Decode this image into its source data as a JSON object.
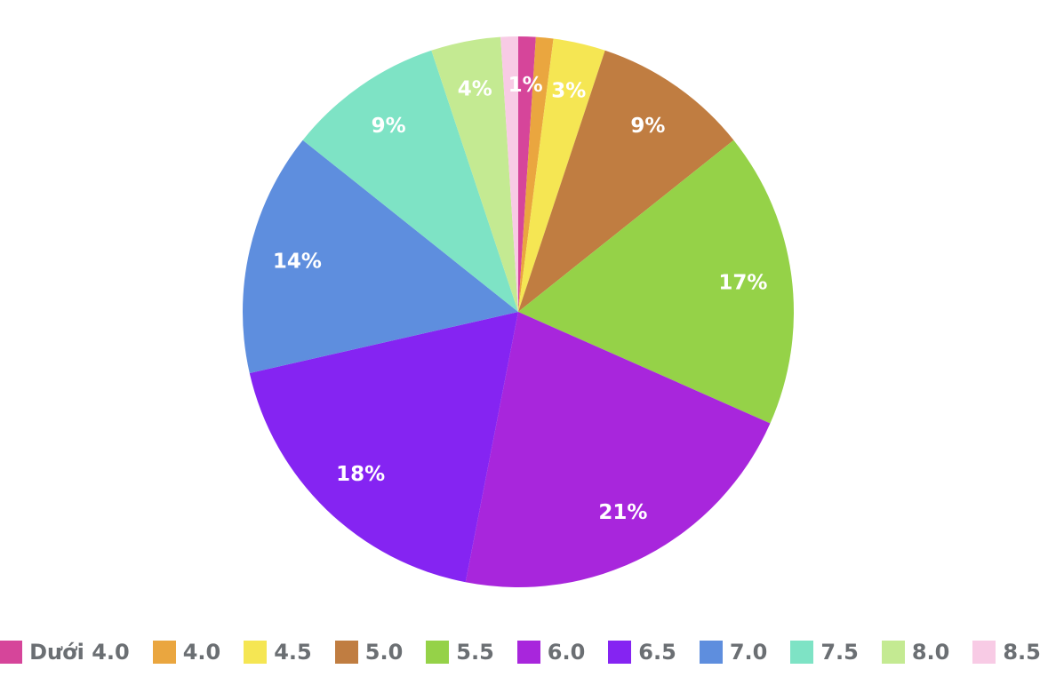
{
  "chart_data": {
    "type": "pie",
    "title": "",
    "start_angle_deg": 0,
    "direction": "clockwise",
    "slices": [
      {
        "label": "Dưới 4.0",
        "value": 1,
        "data_label": "1%",
        "color": "#d6459a"
      },
      {
        "label": "4.0",
        "value": 1,
        "data_label": "",
        "color": "#eaa63f"
      },
      {
        "label": "4.5",
        "value": 3,
        "data_label": "3%",
        "color": "#f5e653"
      },
      {
        "label": "5.0",
        "value": 9,
        "data_label": "9%",
        "color": "#c07d41"
      },
      {
        "label": "5.5",
        "value": 17,
        "data_label": "17%",
        "color": "#95d248"
      },
      {
        "label": "6.0",
        "value": 21,
        "data_label": "21%",
        "color": "#a826dc"
      },
      {
        "label": "6.5",
        "value": 18,
        "data_label": "18%",
        "color": "#8524f2"
      },
      {
        "label": "7.0",
        "value": 14,
        "data_label": "14%",
        "color": "#5e8ede"
      },
      {
        "label": "7.5",
        "value": 9,
        "data_label": "9%",
        "color": "#7ee3c5"
      },
      {
        "label": "8.0",
        "value": 4,
        "data_label": "4%",
        "color": "#c4ea92"
      },
      {
        "label": "8.5",
        "value": 1,
        "data_label": "",
        "color": "#f8cbe5"
      }
    ],
    "legend_position": "bottom"
  }
}
